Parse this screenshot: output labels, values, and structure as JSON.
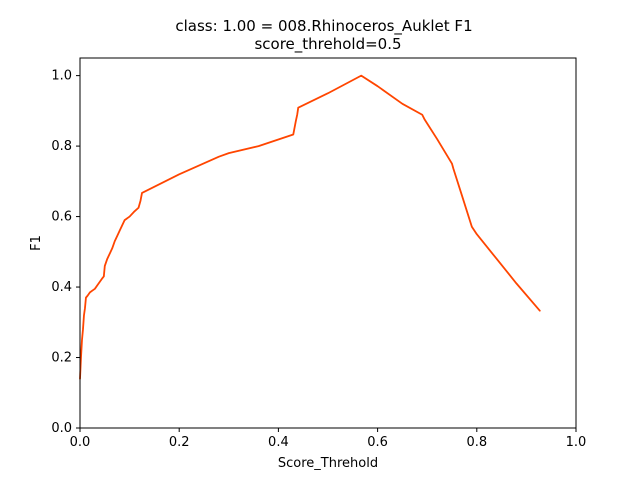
{
  "chart_data": {
    "type": "line",
    "title": "class: 1.00 = 008.Rhinoceros_Auklet F1",
    "subtitle": "score_threhold=0.5",
    "xlabel": "Score_Threhold",
    "ylabel": "F1",
    "xlim": [
      0.0,
      1.0
    ],
    "ylim": [
      0.0,
      1.05
    ],
    "xticks": [
      0.0,
      0.2,
      0.4,
      0.6,
      0.8,
      1.0
    ],
    "xtick_labels": [
      "0.0",
      "0.2",
      "0.4",
      "0.6",
      "0.8",
      "1.0"
    ],
    "yticks": [
      0.0,
      0.2,
      0.4,
      0.6,
      0.8,
      1.0
    ],
    "ytick_labels": [
      "0.0",
      "0.2",
      "0.4",
      "0.6",
      "0.8",
      "1.0"
    ],
    "grid": false,
    "line_color": "#ff4500",
    "series": [
      {
        "x": [
          0.0,
          0.002,
          0.004,
          0.006,
          0.008,
          0.01,
          0.012,
          0.015,
          0.02,
          0.025,
          0.03,
          0.035,
          0.04,
          0.045,
          0.048,
          0.05,
          0.055,
          0.06,
          0.065,
          0.07,
          0.075,
          0.08,
          0.085,
          0.09,
          0.1,
          0.11,
          0.118,
          0.122,
          0.125,
          0.2,
          0.28,
          0.3,
          0.36,
          0.43,
          0.435,
          0.438,
          0.44,
          0.5,
          0.567,
          0.6,
          0.65,
          0.69,
          0.695,
          0.72,
          0.75,
          0.753,
          0.77,
          0.79,
          0.8,
          0.84,
          0.88,
          0.927
        ],
        "y": [
          0.14,
          0.2,
          0.25,
          0.28,
          0.32,
          0.34,
          0.37,
          0.375,
          0.385,
          0.39,
          0.395,
          0.405,
          0.415,
          0.425,
          0.43,
          0.46,
          0.48,
          0.495,
          0.51,
          0.53,
          0.545,
          0.56,
          0.575,
          0.59,
          0.6,
          0.615,
          0.625,
          0.645,
          0.667,
          0.72,
          0.77,
          0.78,
          0.8,
          0.833,
          0.87,
          0.89,
          0.909,
          0.95,
          1.0,
          0.97,
          0.92,
          0.889,
          0.875,
          0.82,
          0.75,
          0.735,
          0.66,
          0.571,
          0.55,
          0.48,
          0.41,
          0.333
        ]
      }
    ]
  }
}
